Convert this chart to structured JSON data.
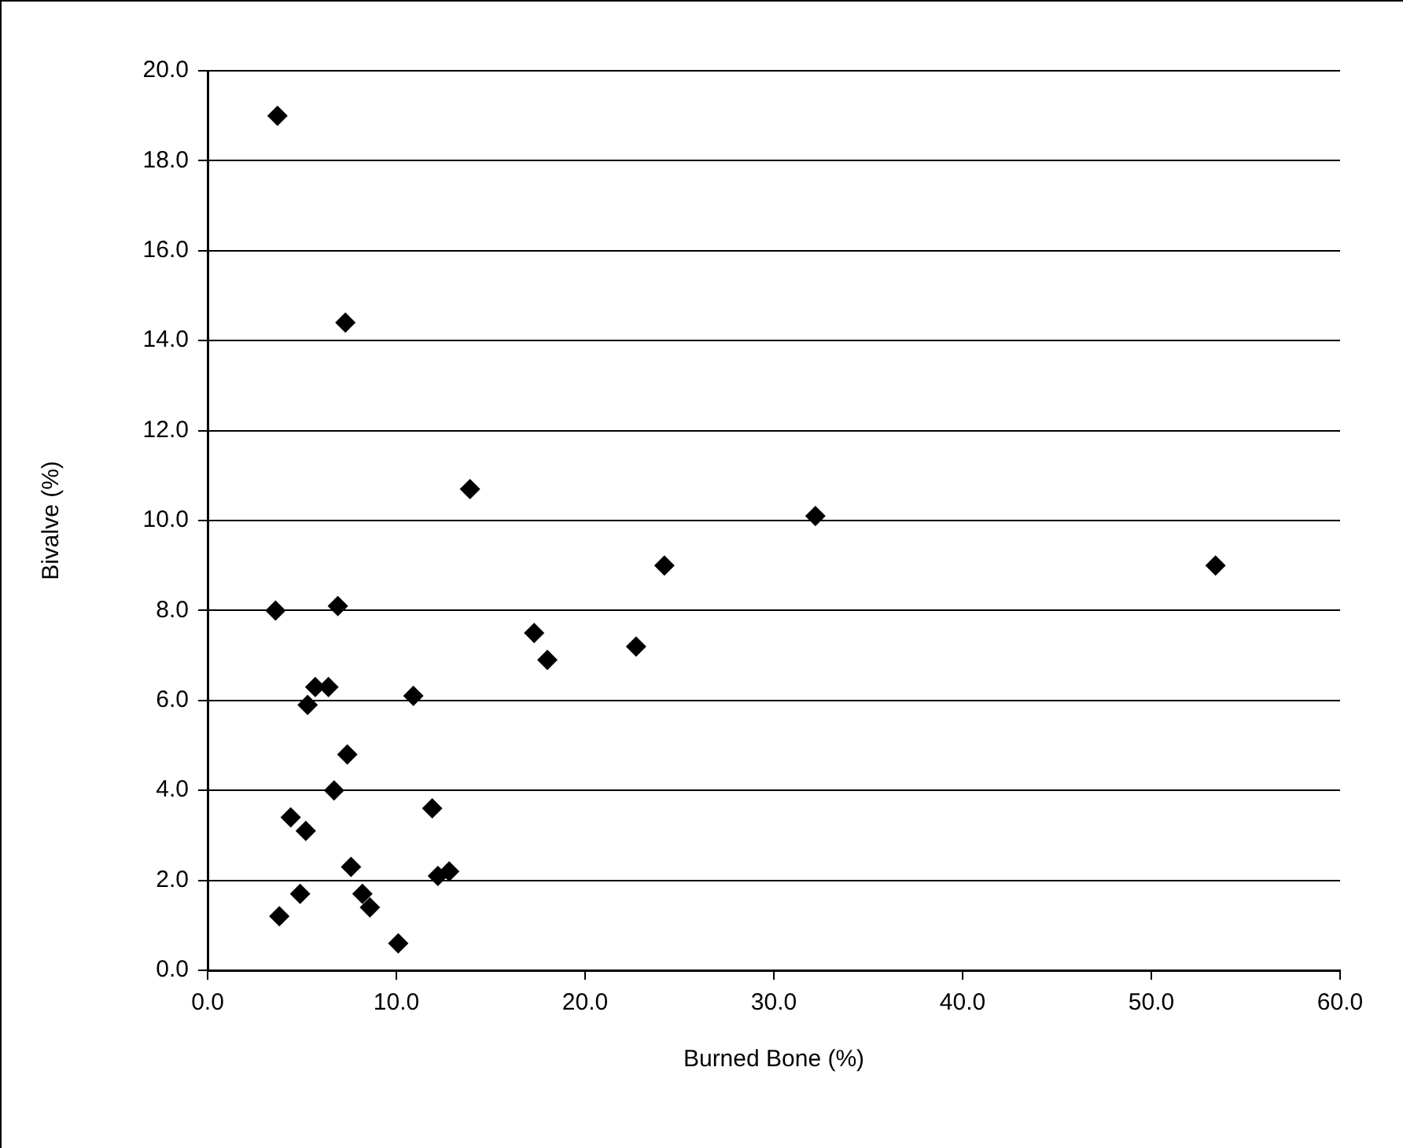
{
  "chart_data": {
    "type": "scatter",
    "xlabel": "Burned Bone (%)",
    "ylabel": "Bivalve (%)",
    "x": [
      3.7,
      7.3,
      13.9,
      3.6,
      6.9,
      17.3,
      18.0,
      5.7,
      6.4,
      5.3,
      10.9,
      7.4,
      6.7,
      4.4,
      5.2,
      11.9,
      7.6,
      4.9,
      3.8,
      8.2,
      8.6,
      10.1,
      12.2,
      12.8,
      24.2,
      53.4,
      22.7,
      32.2
    ],
    "series": [
      {
        "color": "#000000",
        "values": [
          19.0,
          14.4,
          10.7,
          8.0,
          8.1,
          7.5,
          6.9,
          6.3,
          6.3,
          5.9,
          6.1,
          4.8,
          4.0,
          3.4,
          3.1,
          3.6,
          2.3,
          1.7,
          1.2,
          1.7,
          1.4,
          0.6,
          2.1,
          2.2,
          9.0,
          9.0,
          7.2,
          10.1
        ]
      }
    ],
    "xlim": [
      0,
      60
    ],
    "xticks": [
      {
        "value": 0,
        "label": "0.0"
      },
      {
        "value": 10,
        "label": "10.0"
      },
      {
        "value": 20,
        "label": "20.0"
      },
      {
        "value": 30,
        "label": "30.0"
      },
      {
        "value": 40,
        "label": "40.0"
      },
      {
        "value": 50,
        "label": "50.0"
      },
      {
        "value": 60,
        "label": "60.0"
      }
    ],
    "ylim": [
      0,
      20
    ],
    "yticks": [
      {
        "value": 0,
        "label": "0.0"
      },
      {
        "value": 2,
        "label": "2.0"
      },
      {
        "value": 4,
        "label": "4.0"
      },
      {
        "value": 6,
        "label": "6.0"
      },
      {
        "value": 8,
        "label": "8.0"
      },
      {
        "value": 10,
        "label": "10.0"
      },
      {
        "value": 12,
        "label": "12.0"
      },
      {
        "value": 14,
        "label": "14.0"
      },
      {
        "value": 16,
        "label": "16.0"
      },
      {
        "value": 18,
        "label": "18.0"
      },
      {
        "value": 20,
        "label": "20.0"
      }
    ],
    "grid": "y",
    "legend": false,
    "marker": "diamond"
  }
}
